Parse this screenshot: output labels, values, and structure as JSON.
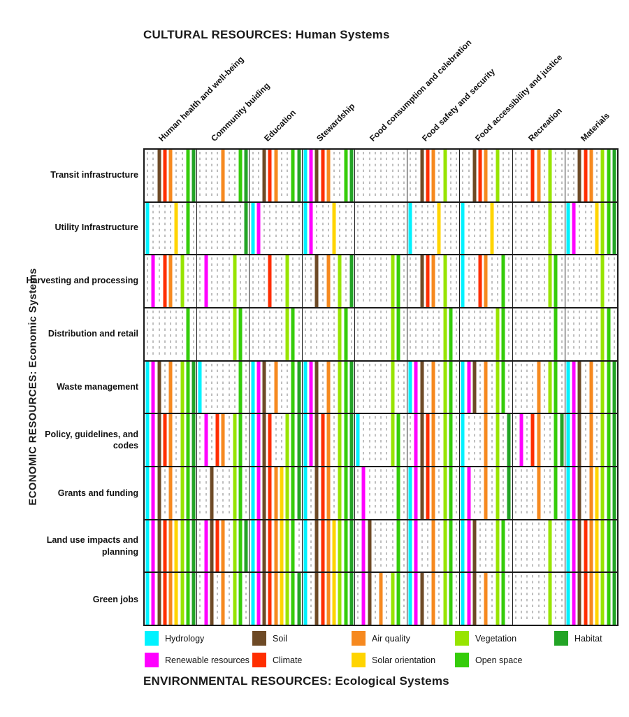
{
  "chart_data": {
    "type": "heatmap",
    "title": "CULTURAL RESOURCES: Human Systems",
    "left_axis_label": "ECONOMIC RESOURCES: Economic Systems",
    "bottom_title": "ENVIRONMENTAL RESOURCES: Ecological Systems",
    "columns": [
      "Human health and well-being",
      "Community buiding",
      "Education",
      "Stewardship",
      "Food consumption and celebration",
      "Food safety and security",
      "Food accessibility and justice",
      "Recreation",
      "Materials"
    ],
    "rows": [
      "Transit infrastructure",
      "Utility Infrastructure",
      "Harvesting and processing",
      "Distribution and retail",
      "Waste management",
      "Policy, guidelines, and codes",
      "Grants and funding",
      "Land use impacts and planning",
      "Green jobs"
    ],
    "resources": [
      {
        "key": "hydrology",
        "label": "Hydrology",
        "color": "#00F2FF"
      },
      {
        "key": "renewable",
        "label": "Renewable resources",
        "color": "#FF00FF"
      },
      {
        "key": "soil",
        "label": "Soil",
        "color": "#6E4A26"
      },
      {
        "key": "climate",
        "label": "Climate",
        "color": "#FF2E00"
      },
      {
        "key": "air",
        "label": "Air quality",
        "color": "#F6891F"
      },
      {
        "key": "solar",
        "label": "Solar orientation",
        "color": "#FFD400"
      },
      {
        "key": "vegetation",
        "label": "Vegetation",
        "color": "#97E400"
      },
      {
        "key": "open_space",
        "label": "Open space",
        "color": "#35CC0A"
      },
      {
        "key": "habitat",
        "label": "Habitat",
        "color": "#23A426"
      }
    ],
    "legend_grid": [
      [
        "hydrology",
        "soil",
        "air",
        "vegetation",
        "habitat"
      ],
      [
        "renewable",
        "climate",
        "solar",
        "open_space"
      ]
    ],
    "matrix": [
      [
        [
          "soil",
          "climate",
          "air",
          "open_space",
          "habitat"
        ],
        [
          "air",
          "open_space",
          "habitat"
        ],
        [
          "soil",
          "climate",
          "air",
          "open_space",
          "habitat"
        ],
        [
          "hydrology",
          "renewable",
          "soil",
          "climate",
          "air",
          "open_space",
          "habitat"
        ],
        [],
        [
          "soil",
          "climate",
          "air",
          "vegetation"
        ],
        [
          "soil",
          "climate",
          "air",
          "vegetation"
        ],
        [
          "climate",
          "air",
          "vegetation"
        ],
        [
          "soil",
          "climate",
          "air",
          "vegetation",
          "open_space",
          "habitat"
        ]
      ],
      [
        [
          "hydrology",
          "solar",
          "open_space"
        ],
        [
          "habitat"
        ],
        [
          "hydrology",
          "renewable"
        ],
        [
          "hydrology",
          "renewable",
          "solar"
        ],
        [],
        [
          "hydrology",
          "solar"
        ],
        [
          "hydrology",
          "solar"
        ],
        [
          "vegetation"
        ],
        [
          "hydrology",
          "renewable",
          "solar",
          "vegetation",
          "open_space",
          "habitat"
        ]
      ],
      [
        [
          "renewable",
          "climate",
          "air",
          "vegetation"
        ],
        [
          "renewable",
          "vegetation"
        ],
        [
          "climate",
          "vegetation"
        ],
        [
          "soil",
          "air",
          "vegetation",
          "habitat"
        ],
        [
          "vegetation",
          "open_space"
        ],
        [
          "soil",
          "climate",
          "air",
          "vegetation"
        ],
        [
          "hydrology",
          "climate",
          "air",
          "open_space"
        ],
        [
          "vegetation",
          "open_space"
        ],
        [
          "vegetation"
        ]
      ],
      [
        [
          "open_space"
        ],
        [
          "vegetation",
          "open_space"
        ],
        [
          "vegetation",
          "open_space"
        ],
        [
          "vegetation",
          "open_space"
        ],
        [
          "vegetation",
          "open_space"
        ],
        [
          "vegetation",
          "open_space"
        ],
        [
          "vegetation",
          "open_space"
        ],
        [
          "open_space"
        ],
        [
          "vegetation",
          "open_space"
        ]
      ],
      [
        [
          "hydrology",
          "renewable",
          "soil",
          "air",
          "vegetation",
          "open_space",
          "habitat"
        ],
        [
          "hydrology",
          "open_space"
        ],
        [
          "hydrology",
          "renewable",
          "soil",
          "air",
          "open_space",
          "habitat"
        ],
        [
          "hydrology",
          "renewable",
          "soil",
          "air",
          "vegetation",
          "open_space",
          "habitat"
        ],
        [
          "vegetation"
        ],
        [
          "hydrology",
          "renewable",
          "soil",
          "air",
          "vegetation",
          "open_space"
        ],
        [
          "hydrology",
          "renewable",
          "soil",
          "air",
          "vegetation",
          "open_space"
        ],
        [
          "air",
          "vegetation",
          "open_space"
        ],
        [
          "hydrology",
          "renewable",
          "soil",
          "air",
          "vegetation",
          "open_space",
          "habitat"
        ]
      ],
      [
        [
          "hydrology",
          "renewable",
          "soil",
          "climate",
          "air",
          "vegetation",
          "open_space",
          "habitat"
        ],
        [
          "renewable",
          "climate",
          "air",
          "vegetation",
          "open_space"
        ],
        [
          "hydrology",
          "renewable",
          "soil",
          "climate",
          "vegetation",
          "open_space",
          "habitat"
        ],
        [
          "hydrology",
          "renewable",
          "soil",
          "climate",
          "air",
          "vegetation",
          "open_space",
          "habitat"
        ],
        [
          "hydrology",
          "vegetation",
          "open_space"
        ],
        [
          "renewable",
          "soil",
          "climate",
          "air",
          "vegetation",
          "open_space"
        ],
        [
          "hydrology",
          "air",
          "vegetation",
          "habitat"
        ],
        [
          "renewable",
          "climate",
          "air",
          "open_space",
          "habitat"
        ],
        [
          "hydrology",
          "renewable",
          "soil",
          "air",
          "vegetation",
          "open_space",
          "habitat"
        ]
      ],
      [
        [
          "hydrology",
          "renewable",
          "soil",
          "air",
          "vegetation",
          "open_space",
          "habitat"
        ],
        [
          "soil",
          "vegetation",
          "open_space"
        ],
        [
          "hydrology",
          "renewable",
          "soil",
          "climate",
          "air",
          "solar",
          "vegetation",
          "open_space",
          "habitat"
        ],
        [
          "hydrology",
          "soil",
          "climate",
          "air",
          "vegetation",
          "open_space",
          "habitat"
        ],
        [
          "renewable",
          "open_space"
        ],
        [
          "hydrology",
          "renewable",
          "soil",
          "climate",
          "air",
          "vegetation",
          "open_space"
        ],
        [
          "hydrology",
          "renewable",
          "air",
          "vegetation",
          "habitat"
        ],
        [
          "air",
          "open_space"
        ],
        [
          "hydrology",
          "renewable",
          "soil",
          "air",
          "solar",
          "vegetation",
          "open_space",
          "habitat"
        ]
      ],
      [
        [
          "hydrology",
          "renewable",
          "soil",
          "climate",
          "air",
          "solar",
          "vegetation",
          "open_space",
          "habitat"
        ],
        [
          "renewable",
          "soil",
          "climate",
          "air",
          "vegetation",
          "open_space",
          "habitat"
        ],
        [
          "hydrology",
          "renewable",
          "soil",
          "climate",
          "air",
          "solar",
          "vegetation",
          "open_space"
        ],
        [
          "hydrology",
          "soil",
          "climate",
          "air",
          "solar",
          "vegetation",
          "open_space",
          "habitat"
        ],
        [
          "renewable",
          "soil",
          "open_space"
        ],
        [
          "hydrology",
          "renewable",
          "air",
          "vegetation",
          "open_space"
        ],
        [
          "hydrology",
          "renewable",
          "soil",
          "vegetation",
          "open_space"
        ],
        [
          "vegetation"
        ],
        [
          "hydrology",
          "renewable",
          "soil",
          "climate",
          "air",
          "solar",
          "vegetation",
          "open_space",
          "habitat"
        ]
      ],
      [
        [
          "hydrology",
          "renewable",
          "soil",
          "climate",
          "air",
          "solar",
          "vegetation",
          "open_space",
          "habitat"
        ],
        [
          "renewable",
          "soil",
          "air",
          "vegetation",
          "open_space"
        ],
        [
          "hydrology",
          "renewable",
          "soil",
          "climate",
          "air",
          "solar",
          "vegetation",
          "open_space",
          "habitat"
        ],
        [
          "hydrology",
          "soil",
          "climate",
          "air",
          "solar",
          "vegetation",
          "open_space",
          "habitat"
        ],
        [
          "renewable",
          "soil",
          "air",
          "vegetation",
          "open_space"
        ],
        [
          "hydrology",
          "renewable",
          "soil",
          "air",
          "vegetation",
          "open_space"
        ],
        [
          "hydrology",
          "renewable",
          "soil",
          "air",
          "vegetation",
          "open_space"
        ],
        [
          "vegetation"
        ],
        [
          "hydrology",
          "renewable",
          "soil",
          "climate",
          "air",
          "solar",
          "vegetation",
          "open_space",
          "habitat"
        ]
      ]
    ]
  }
}
